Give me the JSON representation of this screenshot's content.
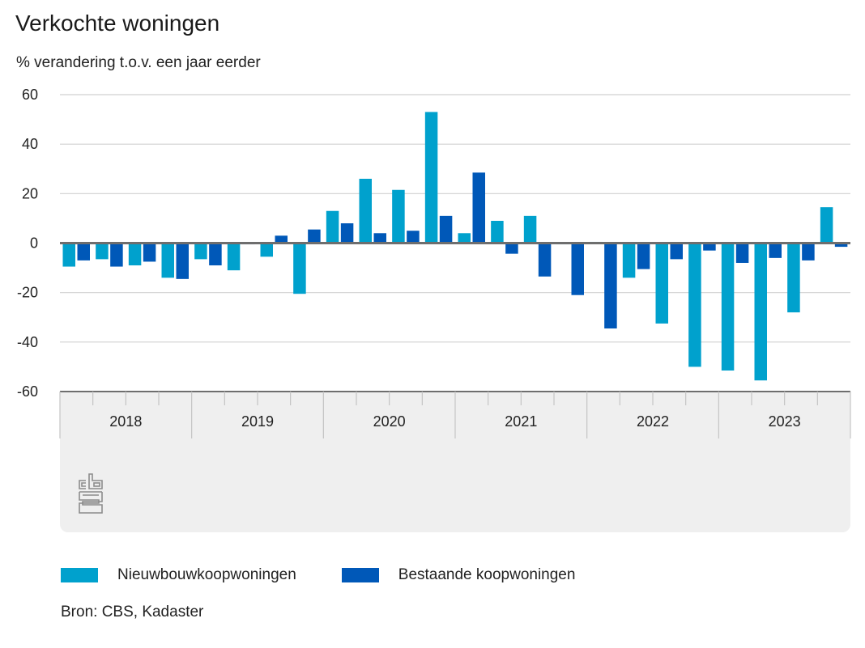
{
  "chart_data": {
    "type": "bar",
    "title": "Verkochte woningen",
    "subtitle": "% verandering t.o.v. een jaar eerder",
    "xlabel": "",
    "ylabel": "% verandering t.o.v. een jaar eerder",
    "ylim": [
      -60,
      60
    ],
    "yticks": [
      60,
      40,
      20,
      0,
      -20,
      -40,
      -60
    ],
    "ytick_labels": [
      "60",
      "40",
      "20",
      "0",
      "-20",
      "-40",
      "-60"
    ],
    "grid": true,
    "year_labels": [
      "2018",
      "2019",
      "2020",
      "2021",
      "2022",
      "2023"
    ],
    "categories": [
      "2018 Q1",
      "2018 Q2",
      "2018 Q3",
      "2018 Q4",
      "2019 Q1",
      "2019 Q2",
      "2019 Q3",
      "2019 Q4",
      "2020 Q1",
      "2020 Q2",
      "2020 Q3",
      "2020 Q4",
      "2021 Q1",
      "2021 Q2",
      "2021 Q3",
      "2021 Q4",
      "2022 Q1",
      "2022 Q2",
      "2022 Q3",
      "2022 Q4",
      "2023 Q1",
      "2023 Q2",
      "2023 Q3",
      "2023 Q4"
    ],
    "series": [
      {
        "name": "Nieuwbouwkoopwoningen",
        "color": "#00a1cd",
        "values": [
          -9.5,
          -6.5,
          -9,
          -14,
          -6.5,
          -11,
          -5.5,
          -20.5,
          13,
          26,
          21.5,
          53,
          4,
          9,
          11,
          -0.5,
          0.5,
          -14,
          -32.5,
          -50,
          -51.5,
          -55.5,
          -28,
          14.5
        ]
      },
      {
        "name": "Bestaande koopwoningen",
        "color": "#0058b8",
        "values": [
          -7,
          -9.5,
          -7.5,
          -14.5,
          -9,
          -0.5,
          3,
          5.5,
          8,
          4,
          5,
          11,
          28.5,
          -4.3,
          -13.5,
          -21,
          -34.5,
          -10.5,
          -6.5,
          -3,
          -8,
          -6,
          -7,
          -1.5
        ]
      }
    ],
    "legend_position": "bottom-left",
    "source": "Bron: CBS, Kadaster"
  },
  "branding": {
    "logo": "cbs-logo-icon"
  },
  "colors": {
    "axis_band": "#efefef",
    "gridline": "#d0d0d0",
    "zero_line": "#6e6e6e"
  }
}
